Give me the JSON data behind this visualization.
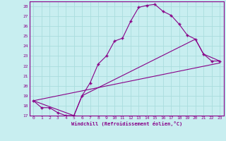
{
  "xlabel": "Windchill (Refroidissement éolien,°C)",
  "bg_color": "#c8eef0",
  "grid_color": "#aadddd",
  "line_color": "#880088",
  "spine_color": "#880088",
  "xlim": [
    -0.5,
    23.5
  ],
  "ylim": [
    17,
    28.5
  ],
  "xticks": [
    0,
    1,
    2,
    3,
    4,
    5,
    6,
    7,
    8,
    9,
    10,
    11,
    12,
    13,
    14,
    15,
    16,
    17,
    18,
    19,
    20,
    21,
    22,
    23
  ],
  "yticks": [
    17,
    18,
    19,
    20,
    21,
    22,
    23,
    24,
    25,
    26,
    27,
    28
  ],
  "curve1_x": [
    0,
    1,
    2,
    3,
    4,
    5,
    6,
    7,
    8,
    9,
    10,
    11,
    12,
    13,
    14,
    15,
    16,
    17,
    18,
    19,
    20,
    21,
    22,
    23
  ],
  "curve1_y": [
    18.5,
    17.8,
    17.8,
    17.3,
    17.0,
    17.0,
    19.0,
    20.3,
    22.2,
    23.0,
    24.5,
    24.8,
    26.5,
    27.9,
    28.1,
    28.2,
    27.5,
    27.1,
    26.2,
    25.1,
    24.7,
    23.2,
    22.5,
    22.5
  ],
  "curve2_x": [
    0,
    23
  ],
  "curve2_y": [
    18.5,
    22.3
  ],
  "curve3_x": [
    0,
    5,
    6,
    20,
    21,
    23
  ],
  "curve3_y": [
    18.5,
    17.0,
    19.0,
    24.7,
    23.2,
    22.5
  ]
}
